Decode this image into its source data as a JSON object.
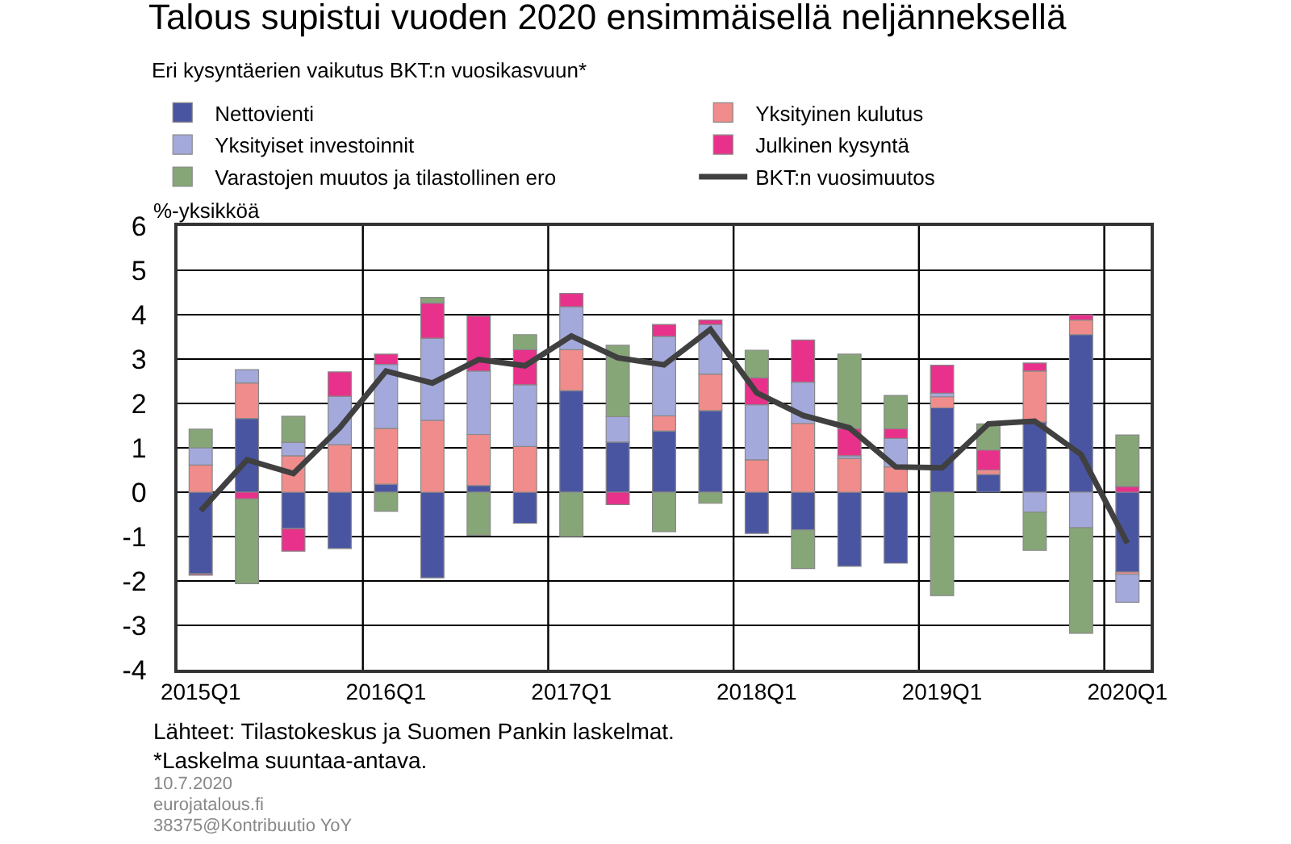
{
  "chart_data": {
    "type": "bar",
    "stacked": true,
    "title": "Talous supistui vuoden 2020 ensimmäisellä neljänneksellä",
    "subtitle": "Eri kysyntäerien vaikutus BKT:n vuosikasvuun*",
    "ylabel": "%-yksikköä",
    "categories": [
      "2015Q1",
      null,
      null,
      null,
      "2016Q1",
      null,
      null,
      null,
      "2017Q1",
      null,
      null,
      null,
      "2018Q1",
      null,
      null,
      null,
      "2019Q1",
      null,
      null,
      null,
      "2020Q1"
    ],
    "series": [
      {
        "name": "Nettovienti",
        "color": "#4a55a2",
        "values": [
          -1.84,
          1.66,
          -0.82,
          -1.27,
          0.18,
          -1.93,
          0.15,
          -0.7,
          2.29,
          1.13,
          1.38,
          1.84,
          -0.93,
          -0.85,
          -1.67,
          -1.6,
          1.9,
          0.4,
          1.58,
          3.55,
          -1.8
        ]
      },
      {
        "name": "Yksityinen kulutus",
        "color": "#f08c8c",
        "values": [
          0.61,
          0.8,
          0.82,
          1.07,
          1.26,
          1.62,
          1.15,
          1.03,
          0.92,
          null,
          0.34,
          0.82,
          0.73,
          1.55,
          0.76,
          0.57,
          0.25,
          0.1,
          1.15,
          0.33,
          -0.05
        ]
      },
      {
        "name": "Yksityiset investoinnit",
        "color": "#a4a9dc",
        "values": [
          0.39,
          0.3,
          0.3,
          1.09,
          1.44,
          1.85,
          1.43,
          1.39,
          0.97,
          0.57,
          1.79,
          1.12,
          1.24,
          0.93,
          0.06,
          0.64,
          0.08,
          null,
          -0.45,
          -0.8,
          -0.63
        ]
      },
      {
        "name": "Julkinen kysyntä",
        "color": "#e8318a",
        "values": [
          -0.03,
          -0.15,
          -0.51,
          0.55,
          0.23,
          0.79,
          1.24,
          0.79,
          0.3,
          -0.28,
          0.27,
          0.1,
          0.61,
          0.95,
          0.61,
          0.22,
          0.63,
          0.45,
          0.18,
          0.12,
          0.13
        ]
      },
      {
        "name": "Varastojen muutos ja tilastollinen ero",
        "color": "#87a678",
        "values": [
          0.42,
          -1.91,
          0.59,
          null,
          -0.43,
          0.13,
          -0.97,
          0.34,
          -1.0,
          1.61,
          -0.89,
          -0.25,
          0.62,
          -0.87,
          1.68,
          0.75,
          -2.33,
          0.59,
          -0.86,
          -2.38,
          1.16
        ]
      },
      {
        "name": "BKT:n vuosimuutos",
        "type": "line",
        "color": "#404040",
        "values": [
          -0.42,
          0.73,
          0.42,
          1.45,
          2.73,
          2.46,
          2.99,
          2.85,
          3.52,
          3.03,
          2.87,
          3.67,
          2.24,
          1.73,
          1.45,
          0.57,
          0.55,
          1.54,
          1.6,
          0.85,
          -1.15
        ]
      }
    ],
    "ylim": [
      -4,
      6
    ],
    "yticks": [
      -4,
      -3,
      -2,
      -1,
      0,
      1,
      2,
      3,
      4,
      5,
      6
    ],
    "grid": true,
    "legend": "top",
    "marker": "none",
    "line_style": "solid",
    "annotations": [
      "Lähteet: Tilastokeskus ja Suomen Pankin laskelmat.",
      "*Laskelma suuntaa-antava.",
      "10.7.2020",
      "eurojatalous.fi",
      "38375@Kontribuutio YoY"
    ]
  }
}
